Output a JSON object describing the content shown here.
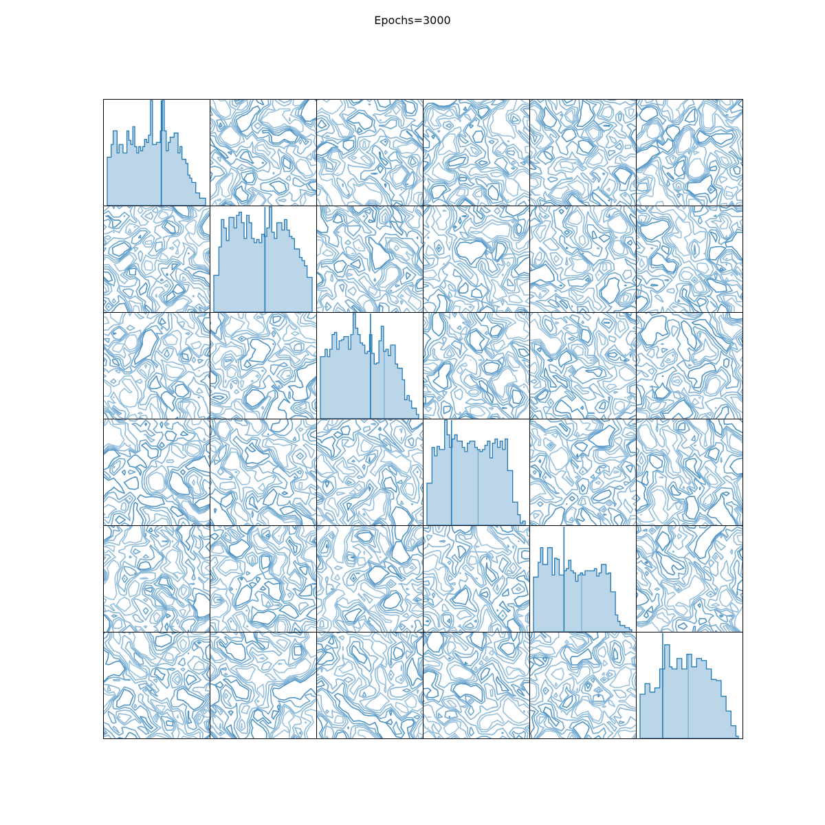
{
  "chart_data": {
    "type": "pairplot",
    "title": "Epochs=3000",
    "n_vars": 6,
    "diagonal": "histogram",
    "off_diagonal": "contour",
    "axes_visible": false,
    "histograms": [
      {
        "counts": [
          0.46,
          0.46,
          0.58,
          0.71,
          0.71,
          0.5,
          0.58,
          0.58,
          0.5,
          0.5,
          0.71,
          0.62,
          0.58,
          0.75,
          0.56,
          0.5,
          0.56,
          0.52,
          0.56,
          0.63,
          0.6,
          0.67,
          1.0,
          0.58,
          0.58,
          0.6,
          0.6,
          0.71,
          1.0,
          0.71,
          0.52,
          0.6,
          0.65,
          0.65,
          0.69,
          0.69,
          0.5,
          0.56,
          0.44,
          0.44,
          0.4,
          0.29,
          0.26,
          0.22,
          0.22,
          0.12,
          0.12,
          0.07,
          0.07,
          0.07
        ],
        "cuts": [
          0.55
        ]
      },
      {
        "counts": [
          0.35,
          0.35,
          0.62,
          0.88,
          0.8,
          0.68,
          0.9,
          0.9,
          0.8,
          0.92,
          0.95,
          0.85,
          0.7,
          0.92,
          0.85,
          0.7,
          0.66,
          0.69,
          0.66,
          0.74,
          0.72,
          0.8,
          1.0,
          0.76,
          0.7,
          0.85,
          0.85,
          0.78,
          0.88,
          0.78,
          0.72,
          0.7,
          0.6,
          0.6,
          0.52,
          0.49,
          0.44,
          0.33,
          0.33
        ],
        "cuts": [
          0.52
        ]
      },
      {
        "counts": [
          0.59,
          0.59,
          0.66,
          0.59,
          0.66,
          0.8,
          0.82,
          0.66,
          0.74,
          0.75,
          0.78,
          0.78,
          0.66,
          0.8,
          1.0,
          0.86,
          0.8,
          0.72,
          0.7,
          0.62,
          0.64,
          0.8,
          0.62,
          0.52,
          0.53,
          0.74,
          0.88,
          0.64,
          0.66,
          0.6,
          0.7,
          0.7,
          0.52,
          0.48,
          0.48,
          0.37,
          0.18,
          0.22,
          0.17,
          0.1,
          0.1,
          0.04
        ],
        "cuts": [
          0.51,
          0.65
        ]
      },
      {
        "counts": [
          0.4,
          0.4,
          0.74,
          0.66,
          0.75,
          0.72,
          0.72,
          1.0,
          0.86,
          0.74,
          0.82,
          0.86,
          0.8,
          0.8,
          0.74,
          0.7,
          0.78,
          0.8,
          0.8,
          0.74,
          0.72,
          0.7,
          0.72,
          0.76,
          0.8,
          0.64,
          0.78,
          0.82,
          0.74,
          0.8,
          0.72,
          0.82,
          0.52,
          0.52,
          0.22,
          0.22,
          0.1,
          0.02,
          0.04
        ],
        "cuts": [
          0.25,
          0.52
        ]
      },
      {
        "counts": [
          0.52,
          0.52,
          0.66,
          0.8,
          0.64,
          0.64,
          0.8,
          0.8,
          0.54,
          0.7,
          0.69,
          0.54,
          0.54,
          0.58,
          0.6,
          0.68,
          0.58,
          0.56,
          0.48,
          0.54,
          0.56,
          0.54,
          0.58,
          0.58,
          0.58,
          0.58,
          0.6,
          0.53,
          0.56,
          0.64,
          0.64,
          0.55,
          0.56,
          0.38,
          0.38,
          0.16,
          0.1,
          0.06,
          0.06,
          0.04,
          0.04,
          0.02
        ],
        "cuts": [
          0.31,
          0.49
        ]
      },
      {
        "counts": [
          0.42,
          0.42,
          0.52,
          0.52,
          0.44,
          0.44,
          0.48,
          0.48,
          0.66,
          0.66,
          0.89,
          0.89,
          0.68,
          0.66,
          0.66,
          0.76,
          0.76,
          0.66,
          0.66,
          0.8,
          0.8,
          0.68,
          0.68,
          0.76,
          0.76,
          0.74,
          0.74,
          0.66,
          0.66,
          0.56,
          0.56,
          0.55,
          0.55,
          0.4,
          0.4,
          0.26,
          0.26,
          0.12,
          0.12,
          0.02
        ],
        "cuts": [
          0.23,
          0.49
        ]
      }
    ]
  }
}
